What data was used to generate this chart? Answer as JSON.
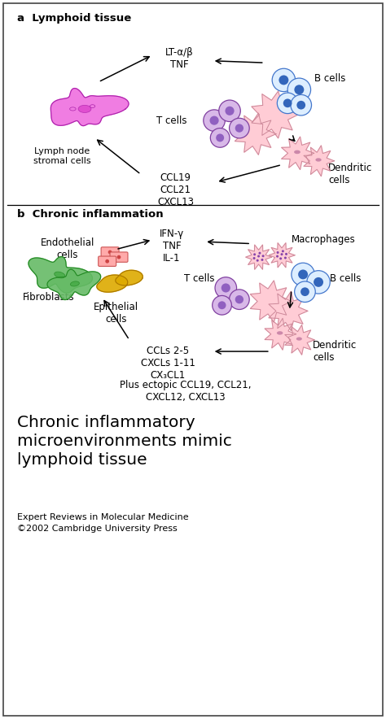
{
  "bg_color": "#ffffff",
  "border_color": "#444444",
  "fig_width": 4.74,
  "fig_height": 8.84,
  "panel_a_title": "a  Lymphoid tissue",
  "panel_b_title": "b  Chronic inflammation",
  "lt_tnf_label": "LT-α/β\nTNF",
  "ccl19_label": "CCL19\nCCL21\nCXCL13",
  "lymph_node_label": "Lymph node\nstromal cells",
  "t_cells_label_a": "T cells",
  "b_cells_label_a": "B cells",
  "dendritic_label_a": "Dendritic\ncells",
  "ifn_label": "IFN-γ\nTNF\nIL-1",
  "ccls_label": "CCLs 2-5\nCXCLs 1-11\nCX₃CL1",
  "plus_ectopic": "Plus ectopic CCL19, CCL21,\nCXCL12, CXCL13",
  "endothelial_label": "Endothelial\ncells",
  "epithelial_label": "Epithelial\ncells",
  "fibroblasts_label": "Fibroblasts",
  "macrophages_label": "Macrophages",
  "t_cells_label_b": "T cells",
  "b_cells_label_b": "B cells",
  "dendritic_label_b": "Dendritic\ncells",
  "footer_title": "Chronic inflammatory\nmicroenvironments mimic\nlymphoid tissue",
  "footer_source": "Expert Reviews in Molecular Medicine\n©2002 Cambridge University Press"
}
